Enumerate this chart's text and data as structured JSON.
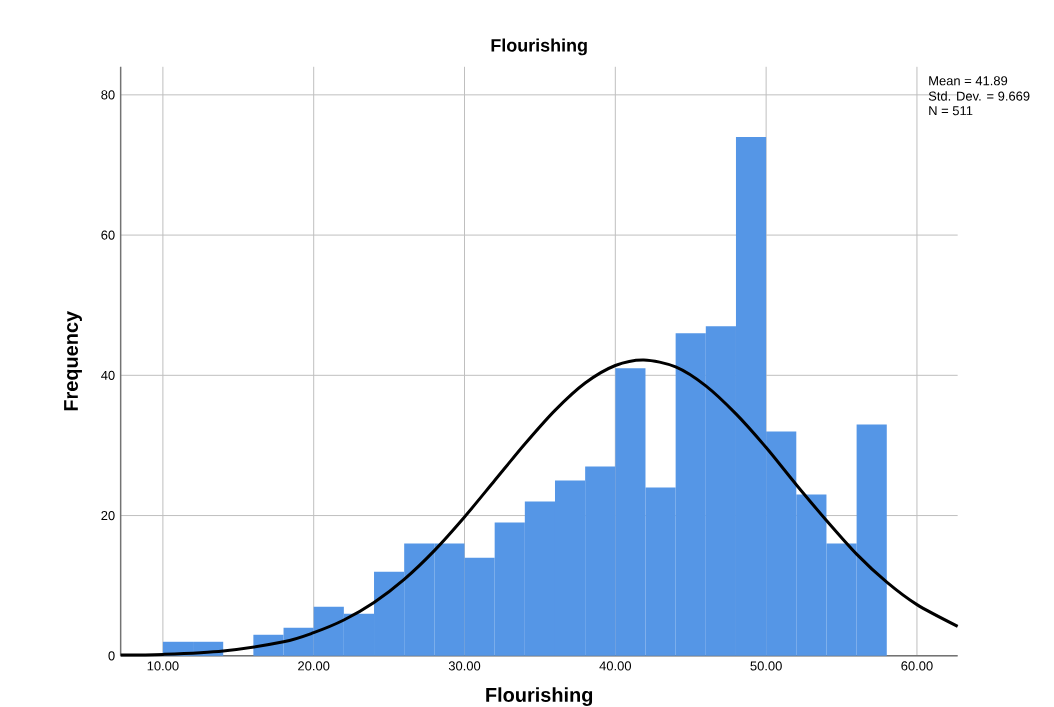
{
  "chart_data": {
    "type": "histogram",
    "title": "Flourishing",
    "xlabel": "Flourishing",
    "ylabel": "Frequency",
    "series": [
      {
        "color": "#5596e6",
        "bins": [
          10,
          12,
          14,
          16,
          18,
          20,
          22,
          24,
          26,
          28,
          30,
          32,
          34,
          36,
          38,
          40,
          42,
          44,
          46,
          48,
          50,
          52,
          54,
          56,
          58
        ],
        "values": [
          2,
          2,
          0,
          3,
          4,
          7,
          6,
          12,
          16,
          16,
          14,
          19,
          22,
          25,
          27,
          41,
          24,
          46,
          47,
          74,
          32,
          23,
          16,
          33
        ]
      },
      {
        "type": "line",
        "color": "#000000",
        "x": [
          7.2,
          10,
          14,
          18,
          20,
          22,
          24,
          26,
          28,
          30,
          32,
          34,
          36,
          38,
          40,
          41.89,
          44,
          46,
          48,
          50,
          52,
          54,
          56,
          58,
          60,
          62.7
        ],
        "values": [
          0.1,
          0.2,
          0.7,
          2,
          3.3,
          5.1,
          7.6,
          10.9,
          15,
          19.8,
          25,
          30.2,
          35,
          38.9,
          41.4,
          42.2,
          41.2,
          38.5,
          34.5,
          29.7,
          24.4,
          19.3,
          14.5,
          10.5,
          7.3,
          4.2
        ]
      }
    ],
    "xlim": [
      7.2,
      62.7
    ],
    "ylim": [
      0,
      84
    ],
    "xticks": [
      {
        "value": 10,
        "label": "10.00"
      },
      {
        "value": 20,
        "label": "20.00"
      },
      {
        "value": 30,
        "label": "30.00"
      },
      {
        "value": 40,
        "label": "40.00"
      },
      {
        "value": 50,
        "label": "50.00"
      },
      {
        "value": 60,
        "label": "60.00"
      }
    ],
    "yticks": [
      0,
      20,
      40,
      60,
      80
    ],
    "grid": true,
    "annotations": [
      "Mean = 41.89",
      "Std. Dev. = 9.669",
      "N = 511"
    ]
  }
}
